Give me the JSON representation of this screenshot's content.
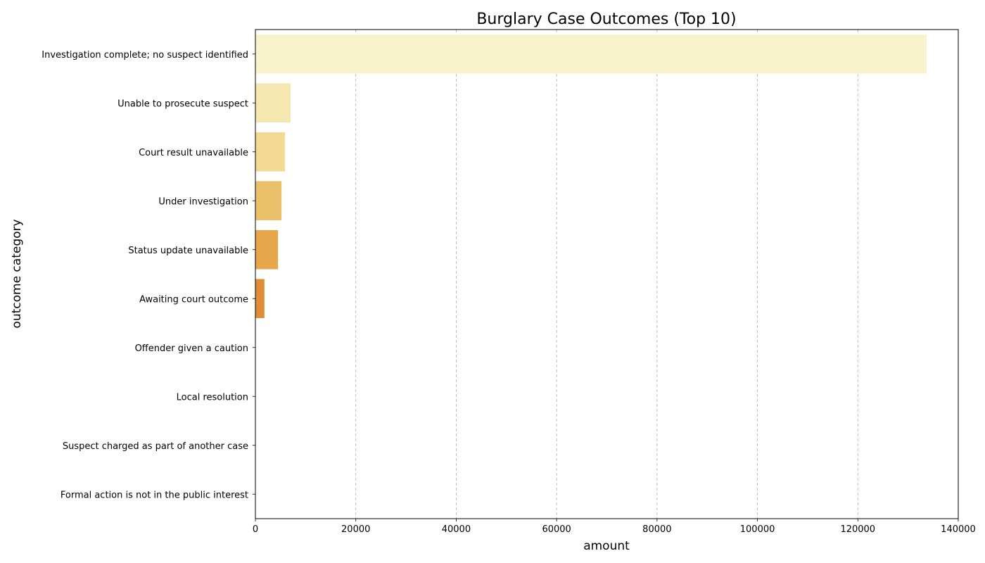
{
  "chart_data": {
    "type": "bar",
    "orientation": "horizontal",
    "title": "Burglary Case Outcomes (Top 10)",
    "xlabel": "amount",
    "ylabel": "outcome category",
    "xlim": [
      0,
      140000
    ],
    "xticks": [
      0,
      20000,
      40000,
      60000,
      80000,
      100000,
      120000,
      140000
    ],
    "grid": "x, dashed",
    "categories": [
      "Investigation complete; no suspect identified",
      "Unable to prosecute suspect",
      "Court result unavailable",
      "Under investigation",
      "Status update unavailable",
      "Awaiting court outcome",
      "Offender given a caution",
      "Local resolution",
      "Suspect charged as part of another case",
      "Formal action is not in the public interest"
    ],
    "values": [
      133700,
      7000,
      5900,
      5200,
      4500,
      1800,
      60,
      40,
      30,
      20
    ],
    "colors": [
      "#f8f3cd",
      "#f4e8b0",
      "#f2da94",
      "#ebc06a",
      "#e6a74a",
      "#de8e37",
      "#d07a2e",
      "#c36a2a",
      "#b35c27",
      "#a34f24"
    ]
  }
}
